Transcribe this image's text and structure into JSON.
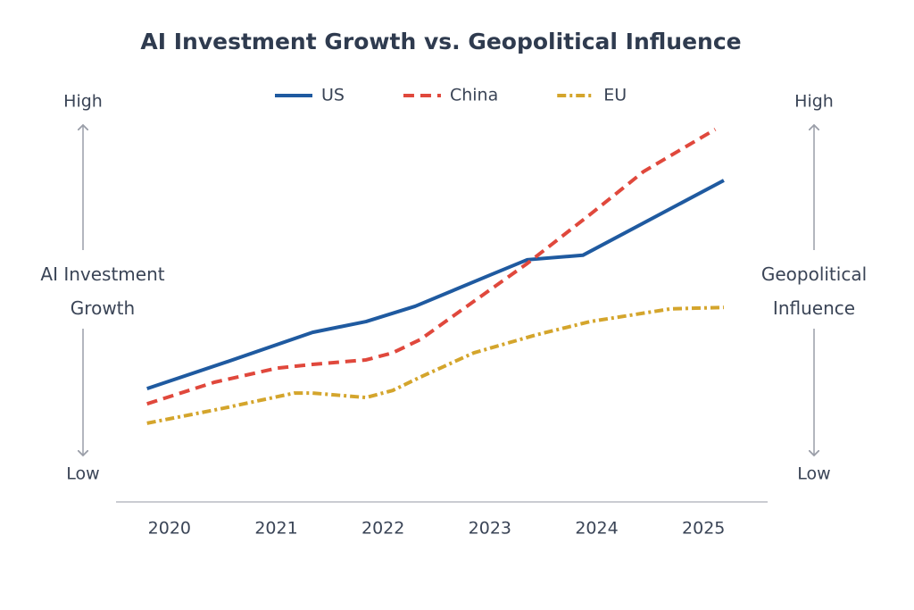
{
  "chart_data": {
    "type": "line",
    "title": "AI Investment Growth vs. Geopolitical Influence",
    "y_label": "AI Investment Growth",
    "y2_label": "Geopolitical Influence",
    "xlim": [
      2019.5,
      2025.6
    ],
    "xticks": [
      2020,
      2021,
      2022,
      2023,
      2024,
      2025
    ],
    "ylim": [
      0,
      100
    ],
    "yticks": [
      {
        "value": 0,
        "label": "Low"
      },
      {
        "value": 100,
        "label": "High"
      }
    ],
    "y2lim": [
      0,
      100
    ],
    "y2ticks": [
      {
        "value": 0,
        "label": "Low"
      },
      {
        "value": 100,
        "label": "High"
      }
    ],
    "grid": false,
    "legend": "top",
    "series": [
      {
        "name": "US",
        "color": "#1f5aa0",
        "style": "solid",
        "x": [
          2019.79,
          2020.54,
          2021.34,
          2021.84,
          2022.3,
          2023.02,
          2023.35,
          2023.87,
          2025.19
        ],
        "values": [
          23.0,
          30.2,
          38.1,
          41.0,
          45.1,
          53.7,
          57.6,
          58.8,
          78.9
        ]
      },
      {
        "name": "China",
        "color": "#e0483c",
        "style": "dashed",
        "x": [
          2019.79,
          2020.42,
          2021.01,
          2021.34,
          2021.84,
          2022.09,
          2022.35,
          2022.76,
          2023.35,
          2023.94,
          2024.44,
          2025.11
        ],
        "values": [
          18.9,
          24.7,
          28.5,
          29.5,
          30.7,
          32.6,
          36.2,
          44.6,
          56.6,
          69.8,
          81.3,
          92.6
        ]
      },
      {
        "name": "EU",
        "color": "#d4a52c",
        "style": "dashdot",
        "x": [
          2019.79,
          2020.5,
          2021.17,
          2021.34,
          2021.84,
          2022.09,
          2022.35,
          2022.85,
          2023.43,
          2023.94,
          2024.69,
          2025.19
        ],
        "values": [
          13.7,
          17.7,
          21.8,
          21.8,
          20.6,
          22.5,
          26.1,
          32.6,
          37.4,
          41.0,
          44.4,
          44.8
        ]
      }
    ]
  }
}
